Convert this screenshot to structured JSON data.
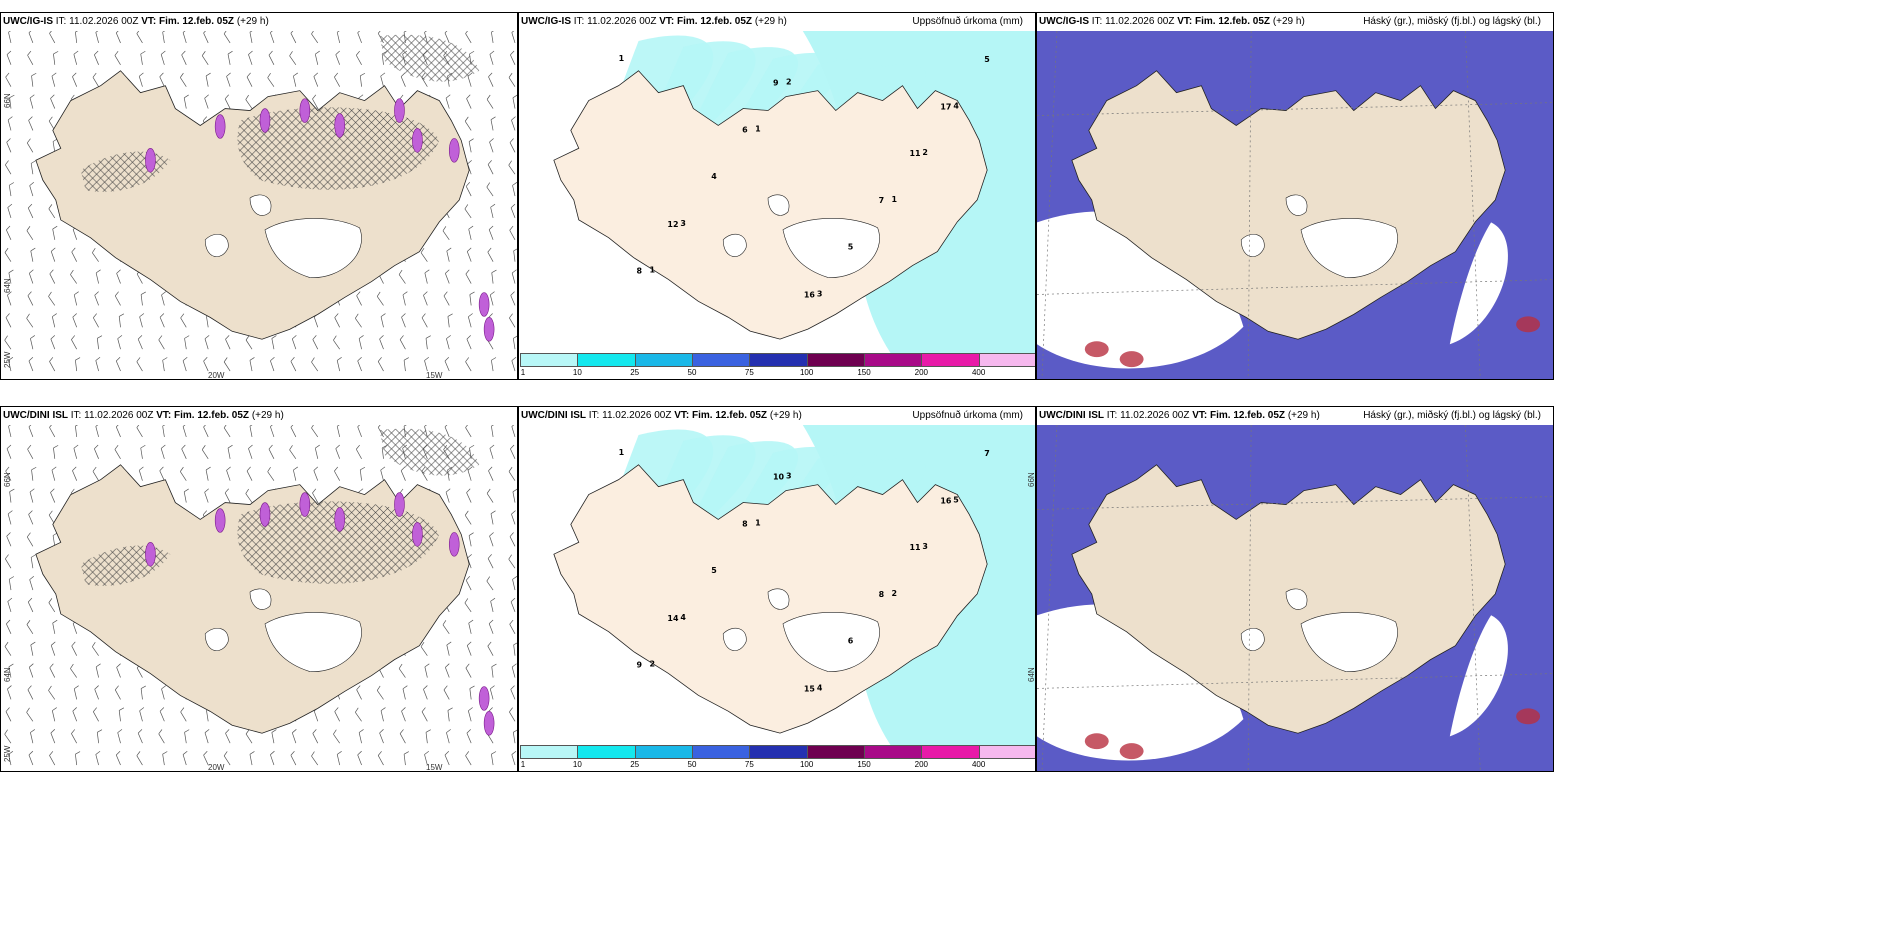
{
  "rows": [
    {
      "id": "uwc-ig-is",
      "panels": [
        {
          "model": "UWC/IG-IS",
          "it_label": "IT:",
          "it_value": "11.02.2026 00Z",
          "vt_label": "VT:",
          "vt_value": "Fim. 12.feb. 05Z",
          "lead": "(+29 h)",
          "right_title": ""
        },
        {
          "model": "UWC/IG-IS",
          "it_label": "IT:",
          "it_value": "11.02.2026 00Z",
          "vt_label": "VT:",
          "vt_value": "Fim. 12.feb. 05Z",
          "lead": "(+29 h)",
          "right_title": "Uppsöfnuð úrkoma (mm)"
        },
        {
          "model": "UWC/IG-IS",
          "it_label": "IT:",
          "it_value": "11.02.2026 00Z",
          "vt_label": "VT:",
          "vt_value": "Fim. 12.feb. 05Z",
          "lead": "(+29 h)",
          "right_title": "Háský (gr.), miðský (fj.bl.) og lágský (bl.)"
        }
      ],
      "precip_numbers": [
        "1",
        "1",
        "1",
        "1",
        "2",
        "2",
        "3",
        "3",
        "4",
        "4",
        "5",
        "5",
        "6",
        "7",
        "8",
        "9",
        "11",
        "12",
        "16",
        "17"
      ]
    },
    {
      "id": "uwc-dini-isl",
      "panels": [
        {
          "model": "UWC/DINI ISL",
          "it_label": "IT:",
          "it_value": "11.02.2026 00Z",
          "vt_label": "VT:",
          "vt_value": "Fim. 12.feb. 05Z",
          "lead": "(+29 h)",
          "right_title": ""
        },
        {
          "model": "UWC/DINI ISL",
          "it_label": "IT:",
          "it_value": "11.02.2026 00Z",
          "vt_label": "VT:",
          "vt_value": "Fim. 12.feb. 05Z",
          "lead": "(+29 h)",
          "right_title": "Uppsöfnuð úrkoma (mm)"
        },
        {
          "model": "UWC/DINI ISL",
          "it_label": "IT:",
          "it_value": "11.02.2026 00Z",
          "vt_label": "VT:",
          "vt_value": "Fim. 12.feb. 05Z",
          "lead": "(+29 h)",
          "right_title": "Háský (gr.), miðský (fj.bl.) og lágský (bl.)"
        }
      ],
      "precip_numbers": [
        "1",
        "1",
        "2",
        "2",
        "3",
        "3",
        "4",
        "4",
        "5",
        "5",
        "6",
        "7",
        "8",
        "8",
        "9",
        "10",
        "11",
        "14",
        "15",
        "16"
      ]
    }
  ],
  "graticule": {
    "lat_labels": [
      "66N",
      "64N"
    ],
    "lon_labels": [
      "25W",
      "20W",
      "15W"
    ]
  },
  "colorbar": {
    "ticks": [
      "1",
      "10",
      "25",
      "50",
      "75",
      "100",
      "150",
      "200",
      "400"
    ],
    "colors": [
      "#b8f7f7",
      "#14e8ee",
      "#1ab8e8",
      "#3a62e0",
      "#2430b0",
      "#6e0050",
      "#a80a88",
      "#e81aa8",
      "#f6b8ee"
    ]
  },
  "colors": {
    "land": "#ede0cc",
    "sea_precip": "#b5f6f6",
    "cloud_low": "#5b5bc6",
    "cloud_mid": "#3aa8e8",
    "wind": "#555555"
  }
}
